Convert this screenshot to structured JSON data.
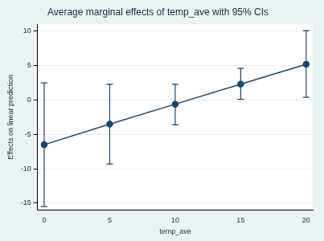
{
  "chart_data": {
    "type": "line",
    "title": "Average marginal effects of temp_ave with 95% CIs",
    "x_label": "temp_ave",
    "y_label": "Effects on linear prediction",
    "x": [
      0,
      5,
      10,
      15,
      20
    ],
    "values": [
      -6.5,
      -3.5,
      -0.6,
      2.3,
      5.2
    ],
    "ci_lower": [
      -15.5,
      -9.3,
      -3.6,
      0.1,
      0.4
    ],
    "ci_upper": [
      2.5,
      2.3,
      2.3,
      4.6,
      10.1
    ],
    "color": "#1a476f",
    "marker": "circle",
    "line_style": "solid",
    "xlim": [
      -0.5,
      20.5
    ],
    "xticks": [
      0,
      5,
      10,
      15,
      20
    ],
    "ylim": [
      -16,
      11
    ],
    "yticks": [
      -15,
      -10,
      -5,
      0,
      5,
      10
    ],
    "grid": true
  }
}
